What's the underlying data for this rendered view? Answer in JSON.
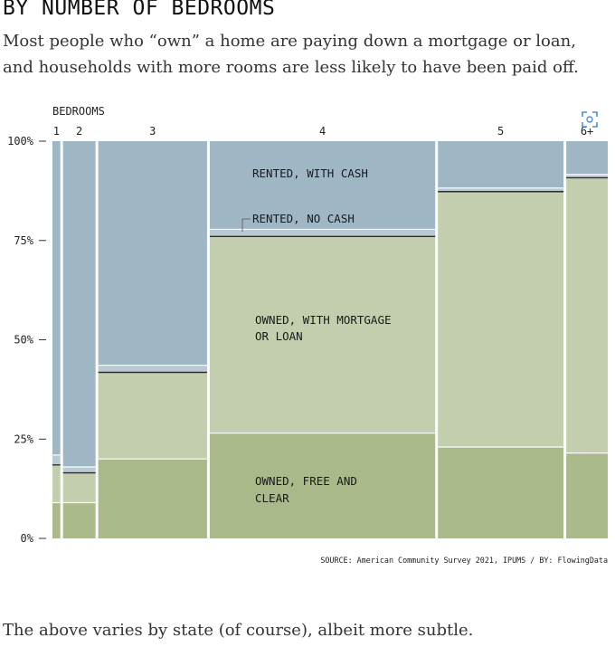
{
  "header": {
    "title": "BY NUMBER OF BEDROOMS",
    "subtitle": "Most people who “own” a home are paying down a mortgage or loan, and households with more rooms are less likely to have been paid off."
  },
  "source": "SOURCE: American Community Survey 2021, IPUMS / BY: FlowingData",
  "footer": {
    "text": "The above varies by state (of course), albeit more subtle."
  },
  "icons": {
    "expand": "expand-icon"
  },
  "colors": {
    "free_and_clear": "#aab98a",
    "mortgage": "#c2cead",
    "rented_no_cash": "#b8c9d4",
    "rented_cash": "#9fb6c5",
    "divider": "#2b2b2b",
    "gap": "#ffffff"
  },
  "chart_data": {
    "type": "mosaic",
    "xlabel": "BEDROOMS",
    "y_ticks": [
      "100%",
      "75%",
      "50%",
      "25%",
      "0%"
    ],
    "categories": [
      "1",
      "2",
      "3",
      "4",
      "5",
      "6+"
    ],
    "column_share_percent": [
      1.4,
      5.8,
      19.4,
      40.2,
      22.4,
      7.4
    ],
    "series": [
      {
        "name": "OWNED, FREE AND CLEAR",
        "values": [
          9,
          9,
          20,
          26.5,
          23,
          21.5
        ]
      },
      {
        "name": "OWNED, WITH MORTGAGE OR LOAN",
        "values": [
          9.5,
          7.5,
          21.8,
          49.5,
          64.3,
          69.3
        ]
      },
      {
        "name": "RENTED, NO CASH",
        "values": [
          2.5,
          1.5,
          1.8,
          1.8,
          0.9,
          0.8
        ]
      },
      {
        "name": "RENTED, WITH CASH",
        "values": [
          79,
          82,
          56.4,
          22.2,
          11.8,
          8.4
        ]
      }
    ],
    "segment_labels": [
      {
        "text": "RENTED, WITH CASH"
      },
      {
        "text": "RENTED, NO CASH"
      },
      {
        "text": "OWNED, WITH MORTGAGE"
      },
      {
        "text": "OR LOAN"
      },
      {
        "text": "OWNED, FREE AND"
      },
      {
        "text": "CLEAR"
      }
    ],
    "ylim": [
      0,
      100
    ],
    "grid": false,
    "legend": "inline labels on column 4"
  }
}
